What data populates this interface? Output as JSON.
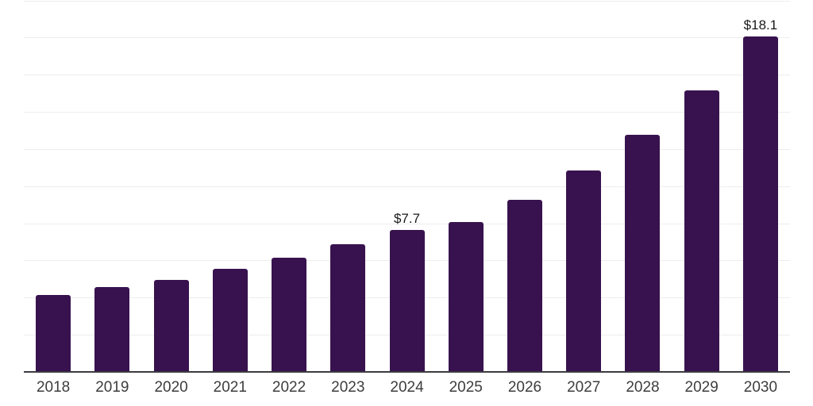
{
  "chart": {
    "title": "",
    "colors": {
      "background": "#ffffff",
      "bar_fill": "#38124E",
      "gridline": "#ededed",
      "axis_line": "#3b3b40",
      "year_label": "#3d3d3d",
      "data_label": "#1a1a1a"
    }
  },
  "chart_data": {
    "type": "bar",
    "title": "",
    "xlabel": "",
    "ylabel": "",
    "categories": [
      "2018",
      "2019",
      "2020",
      "2021",
      "2022",
      "2023",
      "2024",
      "2025",
      "2026",
      "2027",
      "2028",
      "2029",
      "2030"
    ],
    "values": [
      4.2,
      4.6,
      5.0,
      5.6,
      6.2,
      6.9,
      7.7,
      8.1,
      9.3,
      10.9,
      12.8,
      15.2,
      18.1
    ],
    "data_labels": [
      "",
      "",
      "",
      "",
      "",
      "",
      "$7.7",
      "",
      "",
      "",
      "",
      "",
      "$18.1"
    ],
    "ylim": [
      0,
      20
    ],
    "gridline_step": 2,
    "y_tick_labels_visible": false,
    "grid": "horizontal",
    "legend": "none"
  }
}
